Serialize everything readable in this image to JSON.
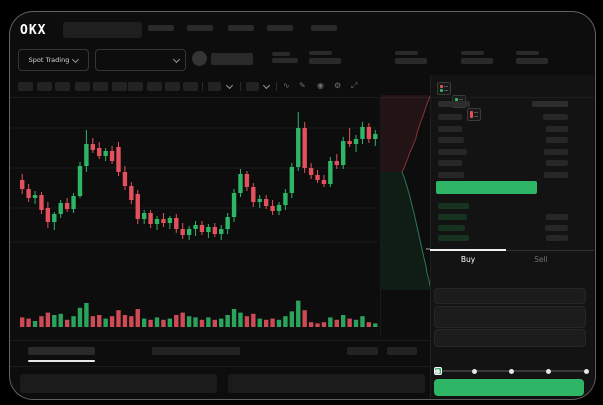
{
  "colors": {
    "green": "#2eb566",
    "red": "#e3515d",
    "depth_ask_fill": "rgba(227,81,93,0.10)",
    "depth_ask_line": "rgba(227,81,93,0.55)",
    "depth_bid_fill": "rgba(46,181,102,0.10)",
    "depth_bid_line": "rgba(64,200,150,0.55)",
    "grid": "#1c1c1c",
    "bid_row_bar": "#16331f"
  },
  "header": {
    "logo_text": "OKX",
    "search_placeholder": "",
    "nav_skeleton_count": 5
  },
  "market_bar": {
    "market_type_label": "Spot Trading"
  },
  "toolbar": {
    "timeframe_skeleton_count": 10,
    "icons": [
      "wave-icon",
      "draw-icon",
      "camera-icon",
      "settings-icon",
      "fullscreen-icon"
    ],
    "icon_glyphs": {
      "wave": "∿",
      "draw": "✎",
      "camera": "◉",
      "settings": "⚙",
      "fullscreen": "⤢"
    }
  },
  "order_book": {
    "view_toggle_icons": [
      "book-combined-icon",
      "book-bids-icon",
      "book-asks-icon"
    ],
    "header_skeleton": {
      "left_w": 32,
      "right_w": 36
    },
    "ask_rows_skeleton": [
      {
        "left_w": 24,
        "right_w": 25
      },
      {
        "left_w": 24,
        "right_w": 22
      },
      {
        "left_w": 26,
        "right_w": 22
      },
      {
        "left_w": 29,
        "right_w": 24
      },
      {
        "left_w": 24,
        "right_w": 22
      },
      {
        "left_w": 26,
        "right_w": 24
      }
    ],
    "last_price_highlight": {
      "color": "#2eb566",
      "width": 101
    },
    "bid_rows_skeleton": [
      {
        "left_w": 31,
        "right_w": 0
      },
      {
        "left_w": 29,
        "right_w": 22
      },
      {
        "left_w": 27,
        "right_w": 23
      },
      {
        "left_w": 31,
        "right_w": 22
      }
    ]
  },
  "trade_panel": {
    "buy_tab": "Buy",
    "sell_tab": "Sell",
    "form_skeleton_boxes": 3,
    "slider_stops_pct": [
      0,
      25,
      50,
      75,
      100
    ],
    "slider_value_pct": 0,
    "submit_button_color": "#2eb566"
  },
  "footer": {
    "tab_skeleton_count": 2,
    "right_skeleton_count": 2,
    "bottom_block_count": 2
  },
  "chart_data": {
    "type": "candlestick",
    "title": "",
    "xlabel": "",
    "ylabel": "",
    "axis_labels_visible": false,
    "ylim": [
      0,
      195
    ],
    "grid_levels": [
      162,
      122,
      82,
      48
    ],
    "candles_ohlc": [
      [
        110,
        116,
        96,
        101
      ],
      [
        101,
        106,
        88,
        92
      ],
      [
        92,
        99,
        86,
        95
      ],
      [
        95,
        98,
        76,
        80
      ],
      [
        82,
        88,
        62,
        68
      ],
      [
        68,
        78,
        60,
        76
      ],
      [
        76,
        90,
        72,
        87
      ],
      [
        87,
        92,
        78,
        81
      ],
      [
        81,
        97,
        77,
        94
      ],
      [
        94,
        128,
        92,
        124
      ],
      [
        124,
        160,
        118,
        146
      ],
      [
        146,
        152,
        137,
        140
      ],
      [
        142,
        148,
        131,
        134
      ],
      [
        134,
        142,
        129,
        139
      ],
      [
        139,
        144,
        126,
        129
      ],
      [
        143,
        148,
        114,
        118
      ],
      [
        118,
        124,
        100,
        104
      ],
      [
        104,
        108,
        86,
        90
      ],
      [
        96,
        100,
        66,
        71
      ],
      [
        71,
        80,
        66,
        77
      ],
      [
        77,
        80,
        62,
        66
      ],
      [
        66,
        74,
        60,
        71
      ],
      [
        71,
        77,
        63,
        67
      ],
      [
        67,
        74,
        61,
        72
      ],
      [
        72,
        76,
        57,
        61
      ],
      [
        61,
        67,
        51,
        55
      ],
      [
        55,
        64,
        50,
        61
      ],
      [
        61,
        69,
        54,
        65
      ],
      [
        65,
        69,
        55,
        58
      ],
      [
        58,
        66,
        52,
        63
      ],
      [
        63,
        67,
        53,
        56
      ],
      [
        56,
        65,
        50,
        61
      ],
      [
        61,
        77,
        56,
        73
      ],
      [
        73,
        101,
        68,
        97
      ],
      [
        97,
        121,
        93,
        116
      ],
      [
        116,
        119,
        99,
        103
      ],
      [
        103,
        107,
        83,
        88
      ],
      [
        88,
        95,
        82,
        91
      ],
      [
        91,
        95,
        81,
        84
      ],
      [
        84,
        90,
        75,
        79
      ],
      [
        79,
        88,
        75,
        85
      ],
      [
        85,
        101,
        80,
        97
      ],
      [
        97,
        127,
        92,
        123
      ],
      [
        123,
        178,
        119,
        162
      ],
      [
        162,
        168,
        117,
        122
      ],
      [
        122,
        127,
        111,
        115
      ],
      [
        115,
        120,
        107,
        110
      ],
      [
        110,
        115,
        103,
        106
      ],
      [
        106,
        133,
        103,
        129
      ],
      [
        129,
        136,
        121,
        125
      ],
      [
        125,
        153,
        121,
        149
      ],
      [
        149,
        162,
        143,
        146
      ],
      [
        146,
        155,
        138,
        151
      ],
      [
        151,
        168,
        146,
        163
      ],
      [
        163,
        167,
        147,
        151
      ],
      [
        151,
        160,
        144,
        156
      ]
    ],
    "volume": [
      8,
      7,
      5,
      9,
      12,
      10,
      11,
      6,
      9,
      16,
      20,
      9,
      10,
      7,
      9,
      14,
      10,
      9,
      15,
      7,
      6,
      8,
      6,
      7,
      10,
      12,
      9,
      8,
      6,
      8,
      6,
      7,
      10,
      15,
      12,
      9,
      11,
      7,
      6,
      7,
      6,
      9,
      13,
      22,
      14,
      4,
      3,
      4,
      8,
      6,
      10,
      7,
      6,
      9,
      4,
      3
    ],
    "depth_profile": {
      "mid_point": [
        402,
        172
      ],
      "asks_curve": [
        [
          402,
          172
        ],
        [
          404,
          168
        ],
        [
          406,
          163
        ],
        [
          408,
          158
        ],
        [
          410,
          152
        ],
        [
          412,
          148
        ],
        [
          414,
          143
        ],
        [
          416,
          138
        ],
        [
          417,
          133
        ],
        [
          419,
          127
        ],
        [
          421,
          121
        ],
        [
          423,
          116
        ],
        [
          425,
          110
        ],
        [
          427,
          104
        ],
        [
          429,
          99
        ],
        [
          430,
          96
        ]
      ],
      "bids_curve": [
        [
          402,
          172
        ],
        [
          404,
          177
        ],
        [
          406,
          183
        ],
        [
          408,
          190
        ],
        [
          410,
          197
        ],
        [
          412,
          205
        ],
        [
          414,
          213
        ],
        [
          416,
          222
        ],
        [
          418,
          231
        ],
        [
          420,
          240
        ],
        [
          422,
          249
        ],
        [
          424,
          258
        ],
        [
          426,
          266
        ],
        [
          427,
          273
        ],
        [
          429,
          280
        ],
        [
          430,
          286
        ]
      ]
    }
  }
}
